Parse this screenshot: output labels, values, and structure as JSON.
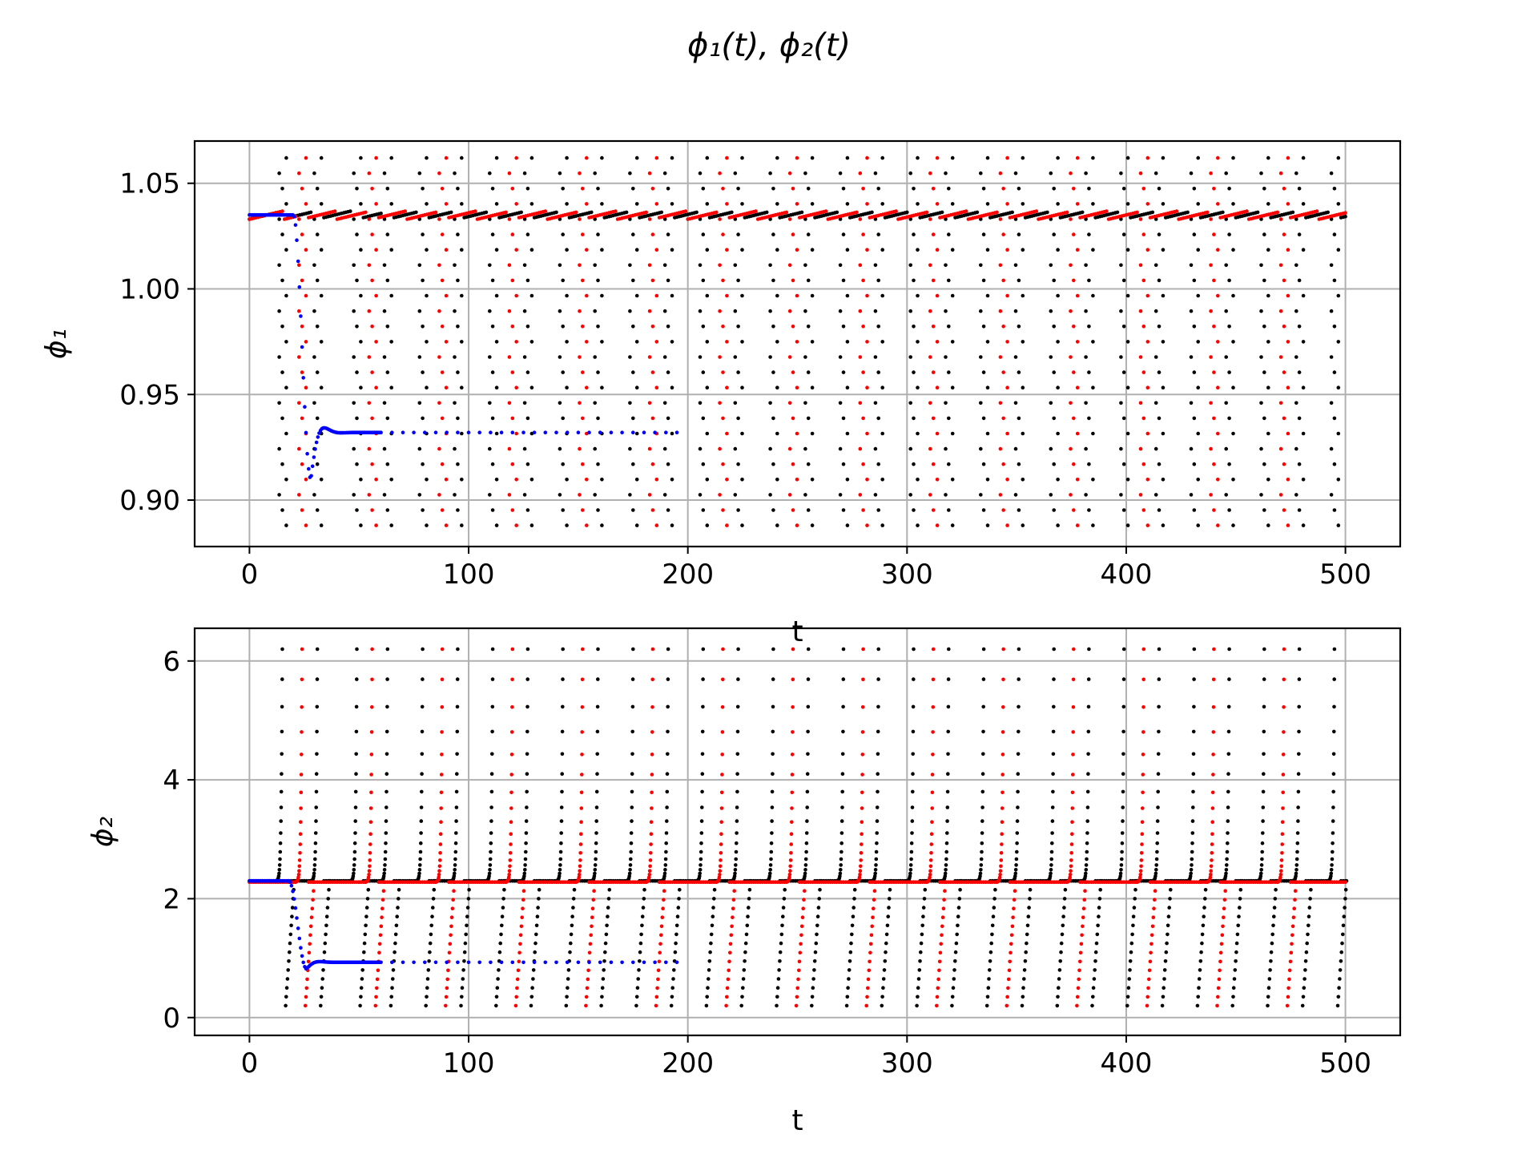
{
  "figure": {
    "title": "ϕ₁(t), ϕ₂(t)"
  },
  "chart_data": [
    {
      "type": "scatter",
      "ylabel": "ϕ₁",
      "xlabel": "t",
      "xlim": [
        -25,
        525
      ],
      "ylim": [
        0.878,
        1.07
      ],
      "x_ticks": [
        0,
        100,
        200,
        300,
        400,
        500
      ],
      "y_ticks": [
        0.9,
        0.95,
        1.0,
        1.05
      ],
      "y_tick_labels": [
        "0.90",
        "0.95",
        "1.00",
        "1.05"
      ],
      "grid": true,
      "series": [
        {
          "color": "#000000",
          "baseline": 1.035,
          "ripple": 0.004,
          "spike_top": 1.062,
          "spike_bottom": 0.888,
          "t_range": [
            0,
            500
          ],
          "spike_times": [
            15,
            31,
            49,
            63,
            79,
            95,
            111,
            127,
            143,
            159,
            175,
            191,
            207,
            223,
            239,
            255,
            271,
            287,
            303,
            319,
            335,
            351,
            367,
            383,
            399,
            415,
            431,
            447,
            463,
            479,
            495
          ]
        },
        {
          "color": "#ff0000",
          "baseline": 1.035,
          "ripple": 0.004,
          "spike_top": 1.062,
          "spike_bottom": 0.888,
          "t_range": [
            0,
            500
          ],
          "spike_times": [
            24,
            56,
            88,
            120,
            152,
            184,
            216,
            248,
            280,
            312,
            344,
            376,
            408,
            440,
            472
          ]
        },
        {
          "color": "#0000ff",
          "start": 1.035,
          "drop_time": 20,
          "minimum": 0.91,
          "overshoot": 0.938,
          "settle": 0.932,
          "t_range": [
            0,
            200
          ]
        }
      ]
    },
    {
      "type": "scatter",
      "ylabel": "ϕ₂",
      "xlabel": "t",
      "xlim": [
        -25,
        525
      ],
      "ylim": [
        -0.3,
        6.55
      ],
      "x_ticks": [
        0,
        100,
        200,
        300,
        400,
        500
      ],
      "y_ticks": [
        0,
        2,
        4,
        6
      ],
      "y_tick_labels": [
        "0",
        "2",
        "4",
        "6"
      ],
      "grid": true,
      "series": [
        {
          "color": "#000000",
          "baseline": 2.3,
          "spike_top": 6.2,
          "spike_bottom": 0.2,
          "t_range": [
            0,
            500
          ],
          "spike_times": [
            15,
            31,
            49,
            63,
            79,
            95,
            111,
            127,
            143,
            159,
            175,
            191,
            207,
            223,
            239,
            255,
            271,
            287,
            303,
            319,
            335,
            351,
            367,
            383,
            399,
            415,
            431,
            447,
            463,
            479,
            495
          ]
        },
        {
          "color": "#ff0000",
          "baseline": 2.28,
          "spike_top": 6.2,
          "spike_bottom": 0.2,
          "t_range": [
            0,
            500
          ],
          "spike_times": [
            24,
            56,
            88,
            120,
            152,
            184,
            216,
            248,
            280,
            312,
            344,
            376,
            408,
            440,
            472
          ]
        },
        {
          "color": "#0000ff",
          "start": 2.3,
          "drop_time": 18,
          "minimum": 0.82,
          "overshoot": 0.98,
          "settle": 0.93,
          "t_range": [
            0,
            200
          ]
        }
      ]
    }
  ]
}
